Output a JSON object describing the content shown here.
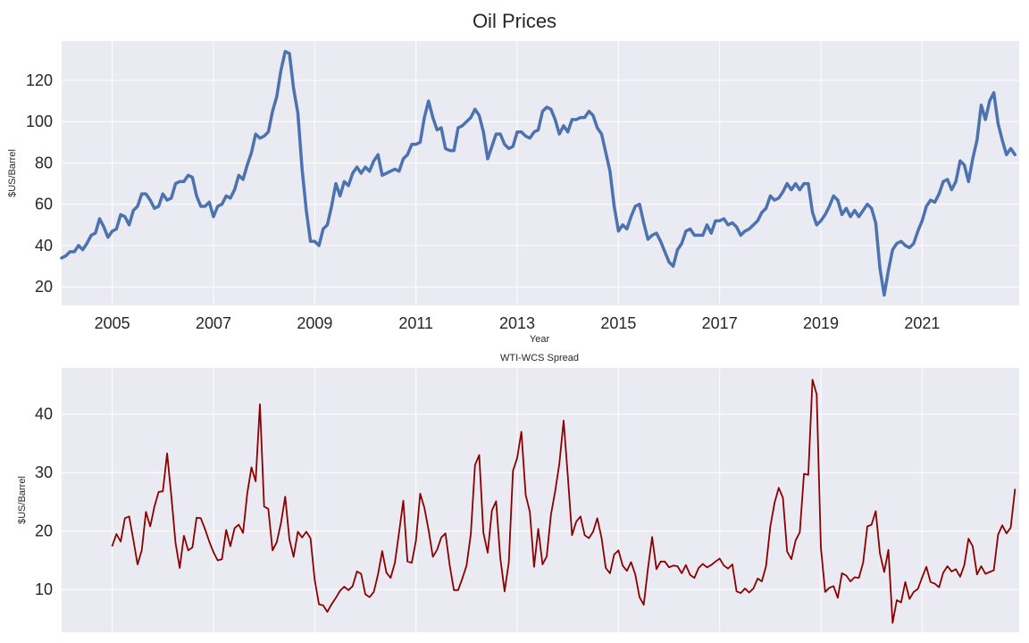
{
  "figure": {
    "title": "Oil Prices"
  },
  "chart_data": [
    {
      "type": "line",
      "title": "Oil Prices",
      "xlabel": "Year",
      "ylabel": "$US/Barrel",
      "xlim": [
        2004.0,
        2022.917
      ],
      "ylim": [
        11,
        139
      ],
      "yticks": [
        20,
        40,
        60,
        80,
        100,
        120
      ],
      "xticks": [
        2005,
        2007,
        2009,
        2011,
        2013,
        2015,
        2017,
        2019,
        2021
      ],
      "xtick_labels": [
        "2005",
        "2007",
        "2009",
        "2011",
        "2013",
        "2015",
        "2017",
        "2019",
        "2021"
      ],
      "grid": true,
      "colors": {
        "line": "#4c72b0",
        "background": "#eaeaf2"
      },
      "series": [
        {
          "x_start": 2004.0,
          "x_step_years": 0.0833333,
          "values": [
            34,
            35,
            37,
            37,
            40,
            38,
            41,
            45,
            46,
            53,
            49,
            44,
            47,
            48,
            55,
            54,
            50,
            57,
            59,
            65,
            65,
            62,
            58,
            59,
            65,
            62,
            63,
            70,
            71,
            71,
            74,
            73,
            64,
            59,
            59,
            61,
            54,
            59,
            60,
            64,
            63,
            67,
            74,
            72,
            79,
            85,
            94,
            92,
            93,
            95,
            105,
            112,
            125,
            134,
            133,
            116,
            104,
            77,
            57,
            42,
            42,
            40,
            48,
            50,
            59,
            70,
            64,
            71,
            69,
            75,
            78,
            75,
            78,
            76,
            81,
            84,
            74,
            75,
            76,
            77,
            76,
            82,
            84,
            89,
            89,
            90,
            102,
            110,
            102,
            96,
            97,
            87,
            86,
            86,
            97,
            98,
            100,
            102,
            106,
            103,
            95,
            82,
            88,
            94,
            94,
            89,
            87,
            88,
            95,
            95,
            93,
            92,
            95,
            96,
            105,
            107,
            106,
            101,
            94,
            98,
            95,
            101,
            101,
            102,
            102,
            105,
            103,
            97,
            94,
            85,
            76,
            59,
            47,
            50,
            48,
            54,
            59,
            60,
            51,
            43,
            45,
            46,
            42,
            37,
            32,
            30,
            38,
            41,
            47,
            48,
            45,
            45,
            45,
            50,
            46,
            52,
            52,
            53,
            50,
            51,
            49,
            45,
            47,
            48,
            50,
            52,
            56,
            58,
            64,
            62,
            63,
            66,
            70,
            67,
            70,
            67,
            70,
            70,
            56,
            50,
            52,
            55,
            59,
            64,
            62,
            55,
            58,
            54,
            57,
            54,
            57,
            60,
            58,
            51,
            29,
            16,
            28,
            38,
            41,
            42,
            40,
            39,
            41,
            47,
            52,
            59,
            62,
            61,
            65,
            71,
            72,
            67,
            71,
            81,
            79,
            71,
            82,
            91,
            108,
            101,
            110,
            114,
            99,
            91,
            84,
            87,
            84
          ]
        }
      ]
    },
    {
      "type": "line",
      "title": "WTI-WCS Spread",
      "xlabel": "",
      "ylabel": "$US/Barrel",
      "xlim": [
        2004.0,
        2022.917
      ],
      "ylim": [
        2.7,
        47.9
      ],
      "yticks": [
        10,
        20,
        30,
        40
      ],
      "grid": true,
      "colors": {
        "line": "#8b0000",
        "background": "#eaeaf2"
      },
      "series": [
        {
          "x_start": 2005.0,
          "x_step_years": 0.0833333,
          "values": [
            17.5,
            19.5,
            18.2,
            22.2,
            22.5,
            18.5,
            14.3,
            16.7,
            23.3,
            20.8,
            24.2,
            26.7,
            26.8,
            33.3,
            26.0,
            18.0,
            13.7,
            19.2,
            16.7,
            17.2,
            22.3,
            22.2,
            20.3,
            18.2,
            16.4,
            15.0,
            15.2,
            20.2,
            17.4,
            20.5,
            21.1,
            19.7,
            26.4,
            30.9,
            28.5,
            41.7,
            24.2,
            23.8,
            16.7,
            18.1,
            21.4,
            25.9,
            18.6,
            15.6,
            19.9,
            18.9,
            19.9,
            18.8,
            11.7,
            7.5,
            7.3,
            6.2,
            7.5,
            8.6,
            9.8,
            10.5,
            9.9,
            10.6,
            13.1,
            12.7,
            9.2,
            8.7,
            9.6,
            12.6,
            16.6,
            12.9,
            12.0,
            14.6,
            19.8,
            25.2,
            14.8,
            14.6,
            18.4,
            26.4,
            24.0,
            20.2,
            15.6,
            16.8,
            18.9,
            19.6,
            14.1,
            9.9,
            9.9,
            11.9,
            14.1,
            19.5,
            31.3,
            33.0,
            19.7,
            16.3,
            23.5,
            25.1,
            15.4,
            9.7,
            14.6,
            30.3,
            32.5,
            37.0,
            26.2,
            23.3,
            13.9,
            20.4,
            14.3,
            15.7,
            22.8,
            26.8,
            31.5,
            38.9,
            29.4,
            19.3,
            21.6,
            22.5,
            19.3,
            18.8,
            19.9,
            22.2,
            18.8,
            13.7,
            12.8,
            16.0,
            16.7,
            14.1,
            13.2,
            14.7,
            12.6,
            8.7,
            7.4,
            13.6,
            19.0,
            13.5,
            14.8,
            14.8,
            13.8,
            14.1,
            14.0,
            12.8,
            14.2,
            12.5,
            12.0,
            13.7,
            14.4,
            13.8,
            14.2,
            14.8,
            15.3,
            14.1,
            13.6,
            14.3,
            9.7,
            9.4,
            10.2,
            9.5,
            10.2,
            11.9,
            11.4,
            14.0,
            20.8,
            24.8,
            27.4,
            25.7,
            16.5,
            15.2,
            18.4,
            19.8,
            29.8,
            29.6,
            45.9,
            43.4,
            17.2,
            9.6,
            10.3,
            10.6,
            8.6,
            12.8,
            12.4,
            11.4,
            12.1,
            12.0,
            14.6,
            20.8,
            21.1,
            23.4,
            16.2,
            13.0,
            16.8,
            4.3,
            8.2,
            7.8,
            11.3,
            8.4,
            9.6,
            10.1,
            12.1,
            13.9,
            11.3,
            11.0,
            10.4,
            12.9,
            14.0,
            13.1,
            13.5,
            12.2,
            14.2,
            18.7,
            17.4,
            12.6,
            14.0,
            12.7,
            13.0,
            13.3,
            19.4,
            21.0,
            19.6,
            20.6,
            27.1
          ]
        }
      ]
    }
  ]
}
